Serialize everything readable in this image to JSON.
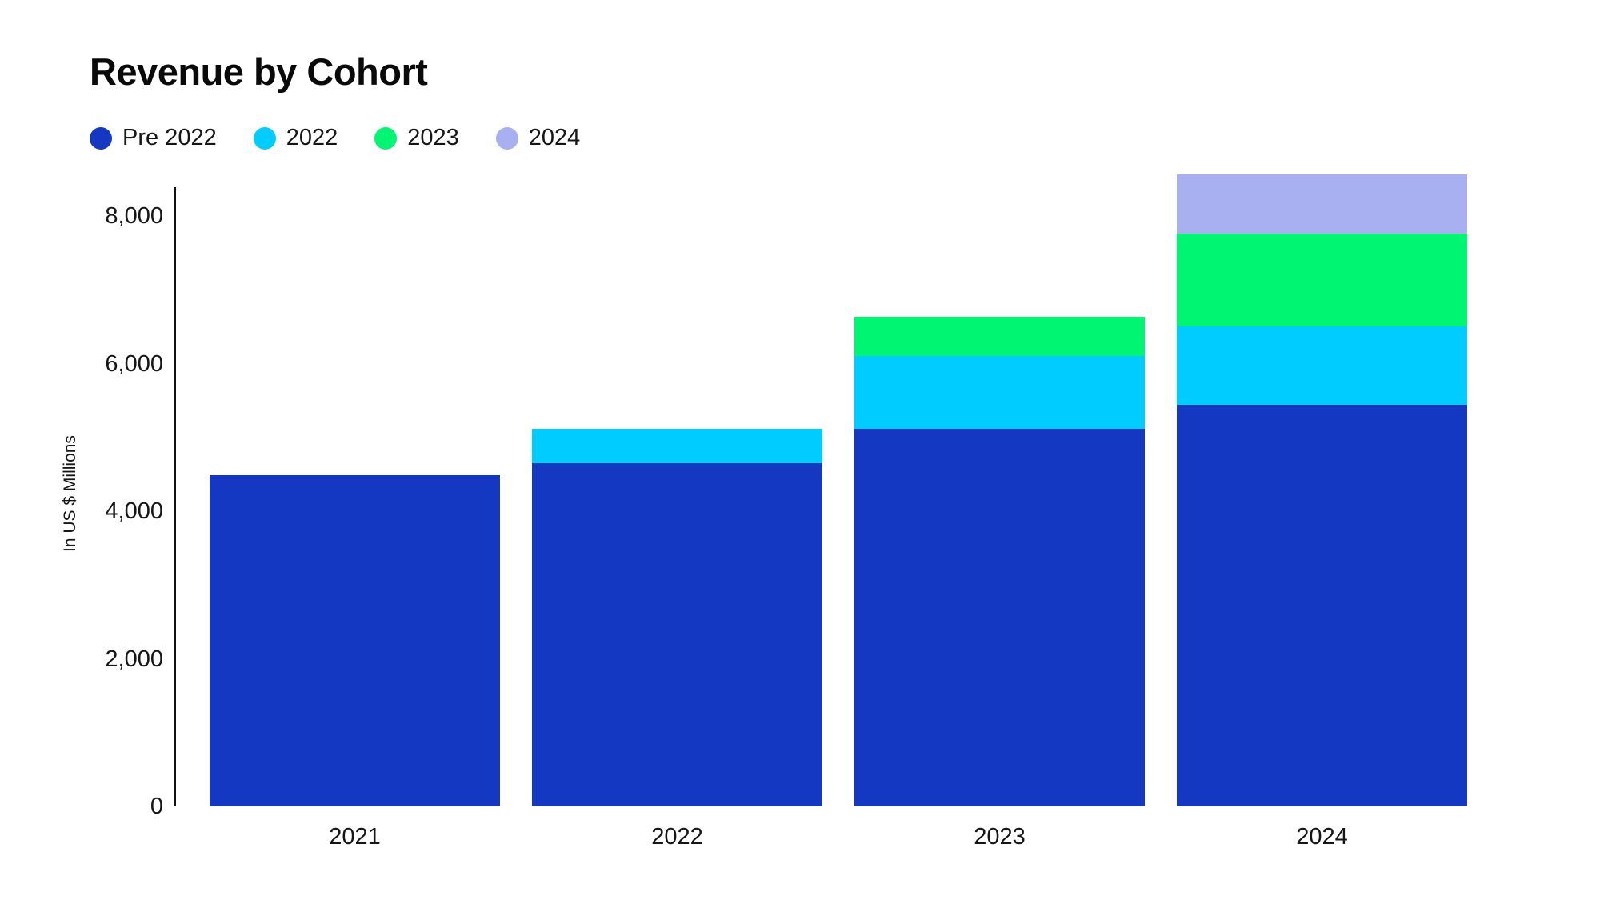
{
  "title": "Revenue by Cohort",
  "y_axis": {
    "title": "In US $ Millions",
    "tick_labels": [
      "0",
      "2,000",
      "4,000",
      "6,000",
      "8,000"
    ],
    "tick_values": [
      0,
      2000,
      4000,
      6000,
      8000
    ]
  },
  "x_axis": {
    "labels": [
      "2021",
      "2022",
      "2023",
      "2024"
    ]
  },
  "colors": {
    "pre_2022": "#1538C2",
    "cohort_2022": "#00CCFF",
    "cohort_2023": "#00F573",
    "cohort_2024": "#A8B0F2",
    "axis": "#111111",
    "text": "#161616",
    "background": "#FFFFFF"
  },
  "chart_data": {
    "type": "bar",
    "stacked": true,
    "title": "Revenue by Cohort",
    "ylabel": "In US $ Millions",
    "xlabel": "",
    "categories": [
      "2021",
      "2022",
      "2023",
      "2024"
    ],
    "series": [
      {
        "name": "Pre 2022",
        "color": "#1538C2",
        "values": [
          4490,
          4650,
          5120,
          5440
        ]
      },
      {
        "name": "2022",
        "color": "#00CCFF",
        "values": [
          0,
          470,
          980,
          1060
        ]
      },
      {
        "name": "2023",
        "color": "#00F573",
        "values": [
          0,
          0,
          530,
          1260
        ]
      },
      {
        "name": "2024",
        "color": "#A8B0F2",
        "values": [
          0,
          0,
          0,
          800
        ]
      }
    ],
    "totals": [
      4490,
      5120,
      6630,
      8560
    ],
    "ylim": [
      0,
      8000
    ],
    "grid": false,
    "legend_position": "top-left"
  }
}
